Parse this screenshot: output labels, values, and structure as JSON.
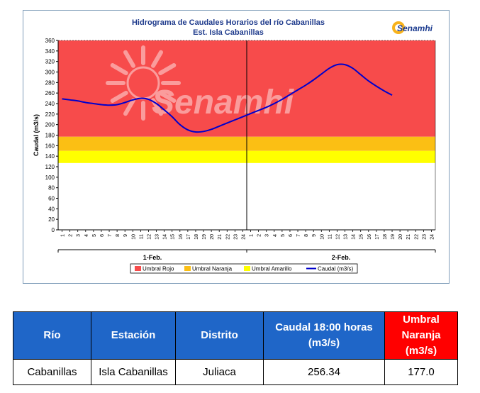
{
  "chart_data": {
    "type": "line",
    "title": "Hidrograma de Caudales Horarios del río Cabanillas",
    "subtitle": "Est. Isla Cabanillas",
    "logo_text": "Senamhi",
    "watermark_text": "Senamhi",
    "ylabel": "Caudal  (m3/s)",
    "ylim": [
      0,
      360
    ],
    "yticks": [
      0,
      20,
      40,
      60,
      80,
      100,
      120,
      140,
      160,
      180,
      200,
      220,
      240,
      260,
      280,
      300,
      320,
      340,
      360
    ],
    "x_hour_labels": [
      "1",
      "2",
      "3",
      "4",
      "5",
      "6",
      "7",
      "8",
      "9",
      "10",
      "11",
      "12",
      "13",
      "14",
      "15",
      "16",
      "17",
      "18",
      "19",
      "20",
      "21",
      "22",
      "23",
      "24"
    ],
    "groups": [
      "1-Feb.",
      "2-Feb."
    ],
    "thresholds": [
      {
        "name": "Umbral Rojo",
        "from": 177,
        "to": 360,
        "color": "#f74b4b"
      },
      {
        "name": "Umbral Naranja",
        "from": 150,
        "to": 177,
        "color": "#fbbf14"
      },
      {
        "name": "Umbral Amarillo",
        "from": 127,
        "to": 150,
        "color": "#ffff00"
      }
    ],
    "series": [
      {
        "name": "Caudal (m3/s)",
        "color": "#0000cc",
        "x": [
          1,
          2,
          3,
          4,
          5,
          6,
          7,
          8,
          9,
          10,
          11,
          12,
          13,
          14,
          15,
          16,
          17,
          18,
          19,
          20,
          21,
          22,
          23,
          24,
          25,
          26,
          27,
          28,
          29,
          30,
          31,
          32,
          33,
          34,
          35,
          36,
          37,
          38,
          39,
          40,
          41,
          42,
          43
        ],
        "values": [
          249,
          247,
          245,
          242,
          240,
          238,
          237,
          238,
          242,
          247,
          250,
          248,
          240,
          228,
          215,
          200,
          190,
          186,
          187,
          191,
          197,
          203,
          209,
          215,
          221,
          227,
          233,
          240,
          248,
          257,
          266,
          275,
          285,
          296,
          307,
          314,
          314,
          307,
          295,
          283,
          273,
          264,
          256
        ]
      }
    ],
    "legend": [
      "Umbral Rojo",
      "Umbral Naranja",
      "Umbral Amarillo",
      "Caudal (m3/s)"
    ],
    "legend_position": "bottom"
  },
  "table": {
    "headers": [
      "Río",
      "Estación",
      "Distrito",
      "Caudal  18:00 horas (m3/s)",
      "Umbral Naranja (m3/s)"
    ],
    "row": [
      "Cabanillas",
      "Isla Cabanillas",
      "Juliaca",
      "256.34",
      "177.0"
    ]
  }
}
